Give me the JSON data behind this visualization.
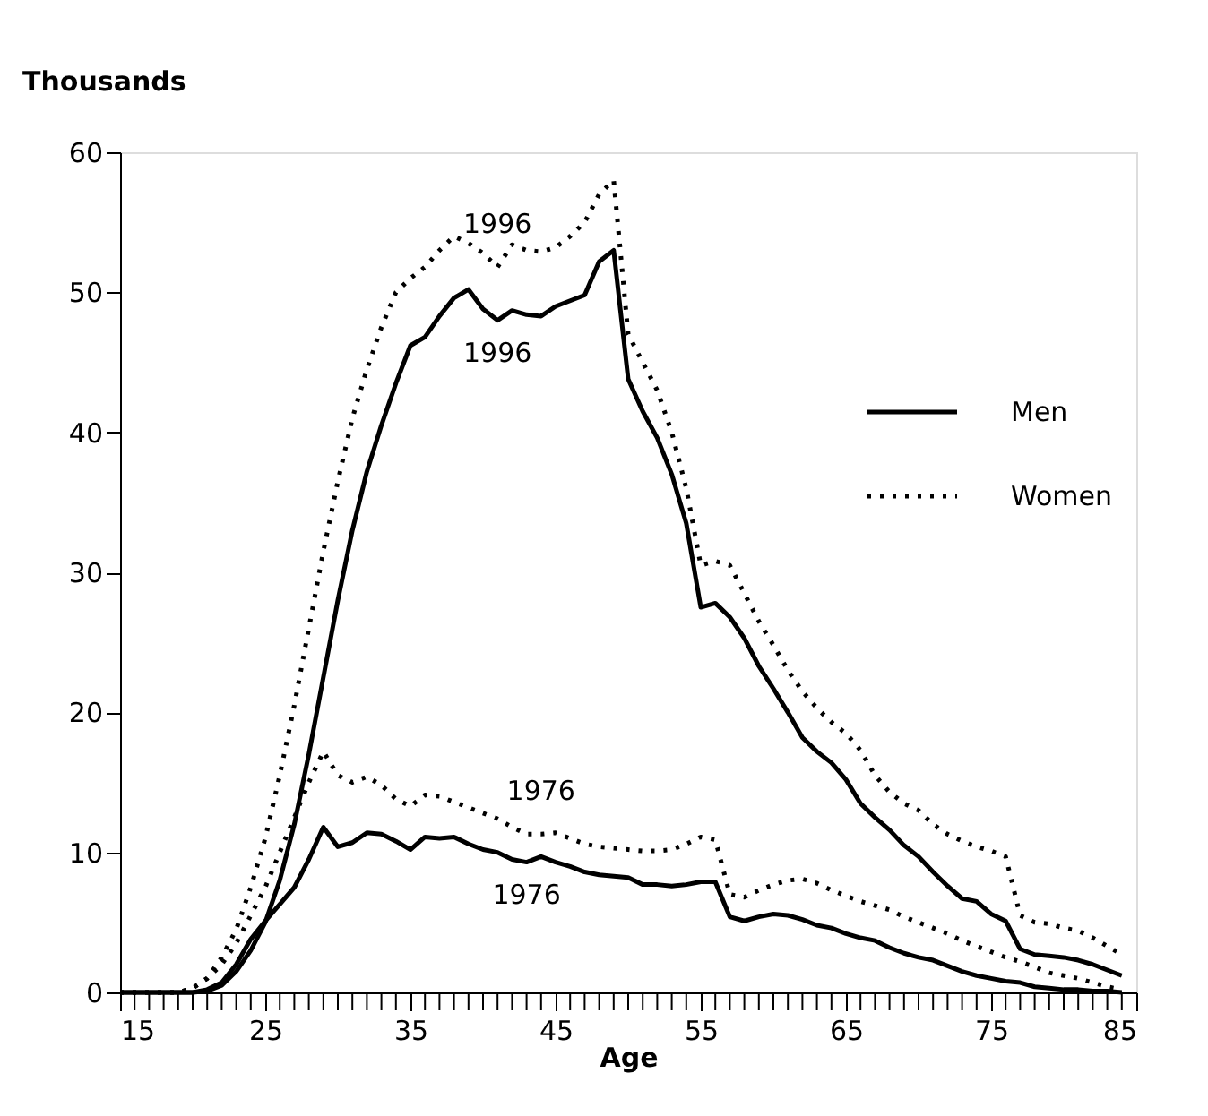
{
  "chart_data": {
    "type": "line",
    "xlabel": "Age",
    "ylabel": "Thousands",
    "x": [
      15,
      16,
      17,
      18,
      19,
      20,
      21,
      22,
      23,
      24,
      25,
      26,
      27,
      28,
      29,
      30,
      31,
      32,
      33,
      34,
      35,
      36,
      37,
      38,
      39,
      40,
      41,
      42,
      43,
      44,
      45,
      46,
      47,
      48,
      49,
      50,
      51,
      52,
      53,
      54,
      55,
      56,
      57,
      58,
      59,
      60,
      61,
      62,
      63,
      64,
      65,
      66,
      67,
      68,
      69,
      70,
      71,
      72,
      73,
      74,
      75,
      76,
      77,
      78,
      79,
      80,
      81,
      82,
      83,
      84
    ],
    "series": [
      {
        "name": "Men",
        "color": "#000000",
        "line_style": "solid",
        "values": [
          0,
          0,
          0,
          0,
          0,
          0,
          0.1,
          0.5,
          1.5,
          3,
          5,
          8,
          12,
          17,
          22.5,
          28,
          33,
          37.2,
          40.5,
          43.5,
          46.2,
          46.8,
          48.3,
          49.6,
          50.2,
          48.8,
          48,
          48.7,
          48.4,
          48.3,
          49,
          49.4,
          49.8,
          52.2,
          53,
          43.8,
          41.5,
          39.6,
          37,
          33.5,
          27.5,
          27.8,
          26.8,
          25.3,
          23.3,
          21.7,
          20,
          18.2,
          17.2,
          16.4,
          15.2,
          13.5,
          12.5,
          11.6,
          10.5,
          9.7,
          8.6,
          7.6,
          6.7,
          6.5,
          5.6,
          5.1,
          3.1,
          2.7,
          2.6,
          2.5,
          2.3,
          2,
          1.6,
          1.2
        ]
      },
      {
        "name": "Women",
        "color": "#000000",
        "line_style": "dotted",
        "values": [
          0,
          0,
          0,
          0,
          0,
          0.3,
          1,
          2.5,
          4.5,
          7.5,
          11,
          15.5,
          20.5,
          26,
          31.5,
          36.5,
          41,
          44.5,
          47.5,
          50,
          51,
          51.8,
          53,
          54,
          53.5,
          52.8,
          51.8,
          53.4,
          53,
          52.9,
          53.2,
          54,
          55,
          57,
          58,
          47,
          45,
          43,
          40,
          36,
          30.5,
          30.8,
          30.5,
          28.5,
          26.5,
          24.8,
          23,
          21.5,
          20.3,
          19.3,
          18.5,
          17.3,
          15.5,
          14.3,
          13.5,
          13,
          12,
          11.3,
          10.8,
          10.4,
          10.1,
          9.7,
          5.5,
          5,
          4.9,
          4.6,
          4.4,
          3.9,
          3.3,
          2.7
        ]
      },
      {
        "color": "#000000",
        "line_style": "solid",
        "values": [
          0,
          0,
          0,
          0,
          0,
          0,
          0.2,
          0.7,
          2,
          3.8,
          5.1,
          6.3,
          7.5,
          9.5,
          11.8,
          10.4,
          10.7,
          11.4,
          11.3,
          10.8,
          10.2,
          11.1,
          11,
          11.1,
          10.6,
          10.2,
          10,
          9.5,
          9.3,
          9.7,
          9.3,
          9,
          8.6,
          8.4,
          8.3,
          8.2,
          7.7,
          7.7,
          7.6,
          7.7,
          7.9,
          7.9,
          5.4,
          5.1,
          5.4,
          5.6,
          5.5,
          5.2,
          4.8,
          4.6,
          4.2,
          3.9,
          3.7,
          3.2,
          2.8,
          2.5,
          2.3,
          1.9,
          1.5,
          1.2,
          1,
          0.8,
          0.7,
          0.4,
          0.3,
          0.2,
          0.2,
          0.1,
          0.1,
          0
        ]
      },
      {
        "color": "#000000",
        "line_style": "dotted",
        "values": [
          0,
          0,
          0,
          0,
          0,
          0.3,
          1,
          2,
          3.5,
          5.5,
          7.5,
          10,
          12.5,
          15,
          17.2,
          15.5,
          15,
          15.4,
          14.8,
          13.8,
          13.3,
          14.1,
          14,
          13.6,
          13.2,
          12.8,
          12.4,
          11.8,
          11.3,
          11.3,
          11.4,
          11,
          10.6,
          10.4,
          10.3,
          10.2,
          10.1,
          10.1,
          10.2,
          10.6,
          11.1,
          10.9,
          7,
          6.8,
          7.3,
          7.7,
          8,
          8.1,
          7.8,
          7.3,
          6.9,
          6.5,
          6.2,
          5.9,
          5.4,
          5,
          4.6,
          4.2,
          3.7,
          3.3,
          2.9,
          2.5,
          2.2,
          1.8,
          1.4,
          1.2,
          1,
          0.7,
          0.4,
          0.2
        ]
      }
    ],
    "xlim": [
      15,
      85
    ],
    "xticks": [
      15,
      {
        "value": 16,
        "label": null
      },
      {
        "value": 17,
        "label": null
      },
      {
        "value": 18,
        "label": null
      },
      {
        "value": 19,
        "label": null
      },
      {
        "value": 20,
        "label": null
      },
      {
        "value": 21,
        "label": null
      },
      {
        "value": 22,
        "label": null
      },
      {
        "value": 23,
        "label": null
      },
      {
        "value": 24,
        "label": null
      },
      25,
      {
        "value": 26,
        "label": null
      },
      {
        "value": 27,
        "label": null
      },
      {
        "value": 28,
        "label": null
      },
      {
        "value": 29,
        "label": null
      },
      {
        "value": 30,
        "label": null
      },
      {
        "value": 31,
        "label": null
      },
      {
        "value": 32,
        "label": null
      },
      {
        "value": 33,
        "label": null
      },
      {
        "value": 34,
        "label": null
      },
      35,
      {
        "value": 36,
        "label": null
      },
      {
        "value": 37,
        "label": null
      },
      {
        "value": 38,
        "label": null
      },
      {
        "value": 39,
        "label": null
      },
      {
        "value": 40,
        "label": null
      },
      {
        "value": 41,
        "label": null
      },
      {
        "value": 42,
        "label": null
      },
      {
        "value": 43,
        "label": null
      },
      {
        "value": 44,
        "label": null
      },
      45,
      {
        "value": 46,
        "label": null
      },
      {
        "value": 47,
        "label": null
      },
      {
        "value": 48,
        "label": null
      },
      {
        "value": 49,
        "label": null
      },
      {
        "value": 50,
        "label": null
      },
      {
        "value": 51,
        "label": null
      },
      {
        "value": 52,
        "label": null
      },
      {
        "value": 53,
        "label": null
      },
      {
        "value": 54,
        "label": null
      },
      55,
      {
        "value": 56,
        "label": null
      },
      {
        "value": 57,
        "label": null
      },
      {
        "value": 58,
        "label": null
      },
      {
        "value": 59,
        "label": null
      },
      {
        "value": 60,
        "label": null
      },
      {
        "value": 61,
        "label": null
      },
      {
        "value": 62,
        "label": null
      },
      {
        "value": 63,
        "label": null
      },
      {
        "value": 64,
        "label": null
      },
      65,
      {
        "value": 66,
        "label": null
      },
      {
        "value": 67,
        "label": null
      },
      {
        "value": 68,
        "label": null
      },
      {
        "value": 69,
        "label": null
      },
      {
        "value": 70,
        "label": null
      },
      {
        "value": 71,
        "label": null
      },
      {
        "value": 72,
        "label": null
      },
      {
        "value": 73,
        "label": null
      },
      {
        "value": 74,
        "label": null
      },
      75,
      {
        "value": 76,
        "label": null
      },
      {
        "value": 77,
        "label": null
      },
      {
        "value": 78,
        "label": null
      },
      {
        "value": 79,
        "label": null
      },
      {
        "value": 80,
        "label": null
      },
      {
        "value": 81,
        "label": null
      },
      {
        "value": 82,
        "label": null
      },
      {
        "value": 83,
        "label": null
      },
      {
        "value": 84,
        "label": null
      },
      85
    ],
    "ylim": [
      0,
      60
    ],
    "yticks": [
      0,
      10,
      20,
      30,
      40,
      50,
      60
    ],
    "grid": false,
    "legend": "top right",
    "marker": "none",
    "annotations": [
      {
        "text": "1996",
        "x": 41,
        "y": 51.8
      },
      {
        "text": "1996",
        "x": 41,
        "y": 48
      },
      {
        "text": "1976",
        "x": 44,
        "y": 11.3
      },
      {
        "text": "1976",
        "x": 43,
        "y": 9.3
      }
    ]
  }
}
